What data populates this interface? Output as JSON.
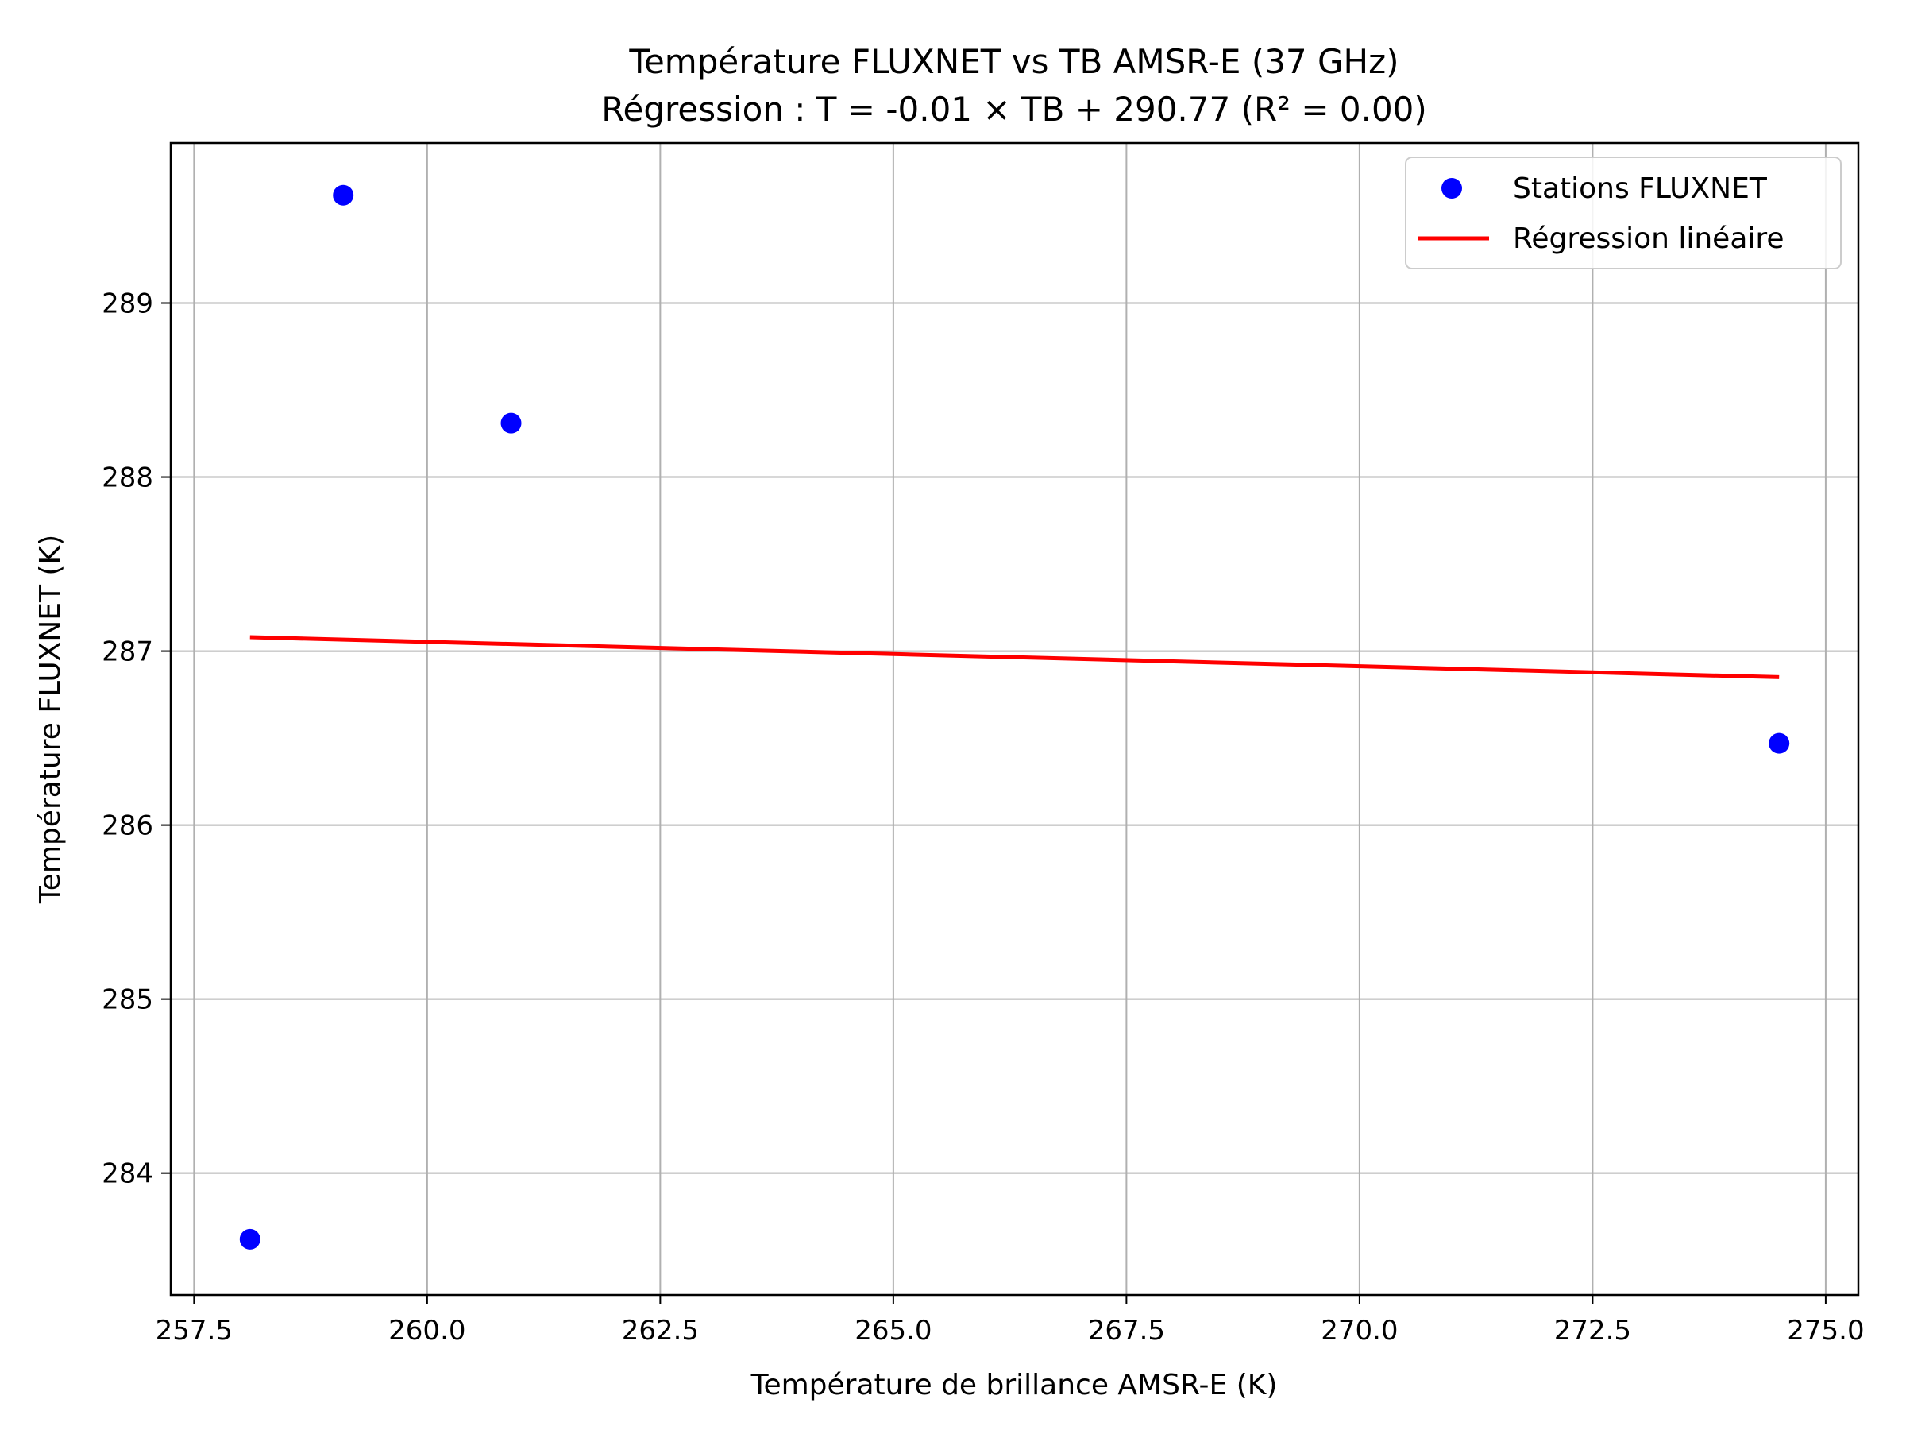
{
  "chart_data": {
    "type": "scatter",
    "title": "Température FLUXNET vs TB AMSR-E (37 GHz)",
    "subtitle": "Régression : T = -0.01 × TB + 290.77 (R² = 0.00)",
    "xlabel": "Température de brillance AMSR-E (K)",
    "ylabel": "Température FLUXNET (K)",
    "xlim": [
      257.25,
      275.35
    ],
    "ylim": [
      283.3,
      289.92
    ],
    "xticks": [
      257.5,
      260.0,
      262.5,
      265.0,
      267.5,
      270.0,
      272.5,
      275.0
    ],
    "xtick_labels": [
      "257.5",
      "260.0",
      "262.5",
      "265.0",
      "267.5",
      "270.0",
      "272.5",
      "275.0"
    ],
    "yticks": [
      284,
      285,
      286,
      287,
      288,
      289
    ],
    "ytick_labels": [
      "284",
      "285",
      "286",
      "287",
      "288",
      "289"
    ],
    "grid": true,
    "legend_position": "top-right",
    "series": [
      {
        "name": "Stations FLUXNET",
        "kind": "scatter",
        "color": "#0000ff",
        "x": [
          258.1,
          259.1,
          260.9,
          274.5
        ],
        "y": [
          283.62,
          289.62,
          288.31,
          286.47
        ]
      },
      {
        "name": "Régression linéaire",
        "kind": "line",
        "color": "#ff0000",
        "x": [
          258.1,
          274.5
        ],
        "y": [
          287.08,
          286.85
        ]
      }
    ]
  }
}
